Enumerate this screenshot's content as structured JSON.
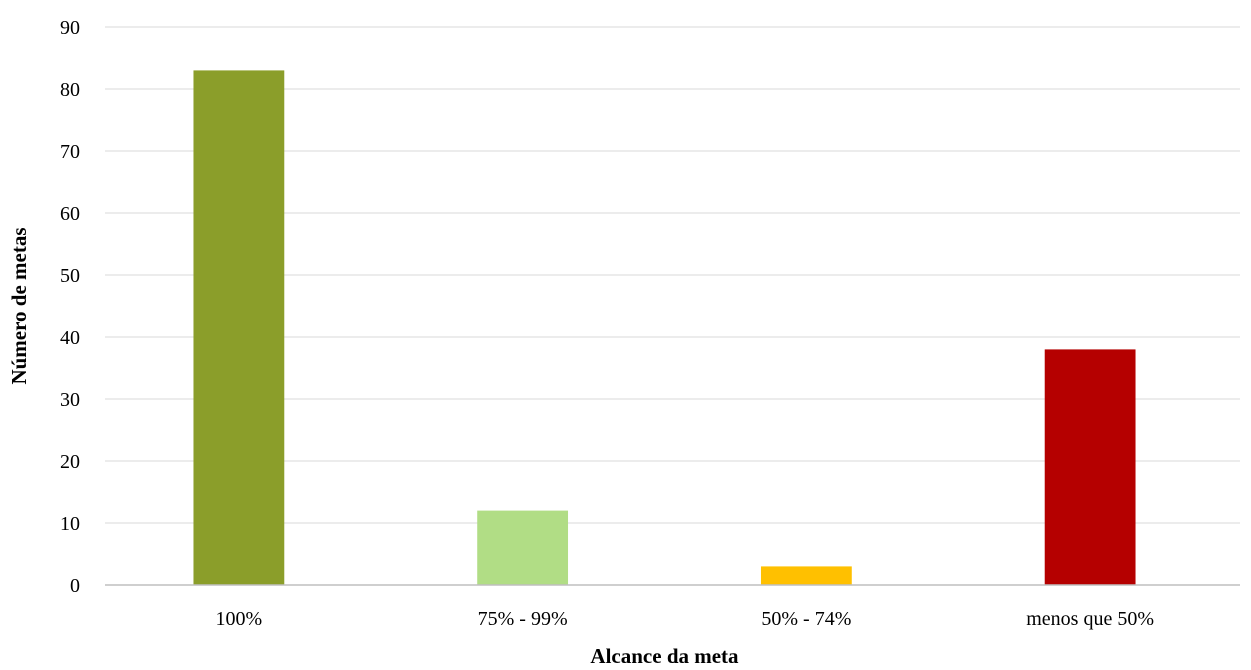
{
  "chart_data": {
    "type": "bar",
    "categories": [
      "100%",
      "75% - 99%",
      "50% - 74%",
      "menos que 50%"
    ],
    "values": [
      83,
      12,
      3,
      38
    ],
    "colors": [
      "#8b9e2a",
      "#b1dd85",
      "#ffc000",
      "#b50000"
    ],
    "title": "",
    "xlabel": "Alcance da meta",
    "ylabel": "Número de metas",
    "ylim": [
      0,
      90
    ],
    "yticks": [
      0,
      10,
      20,
      30,
      40,
      50,
      60,
      70,
      80,
      90
    ],
    "grid": true,
    "legend": "none"
  }
}
